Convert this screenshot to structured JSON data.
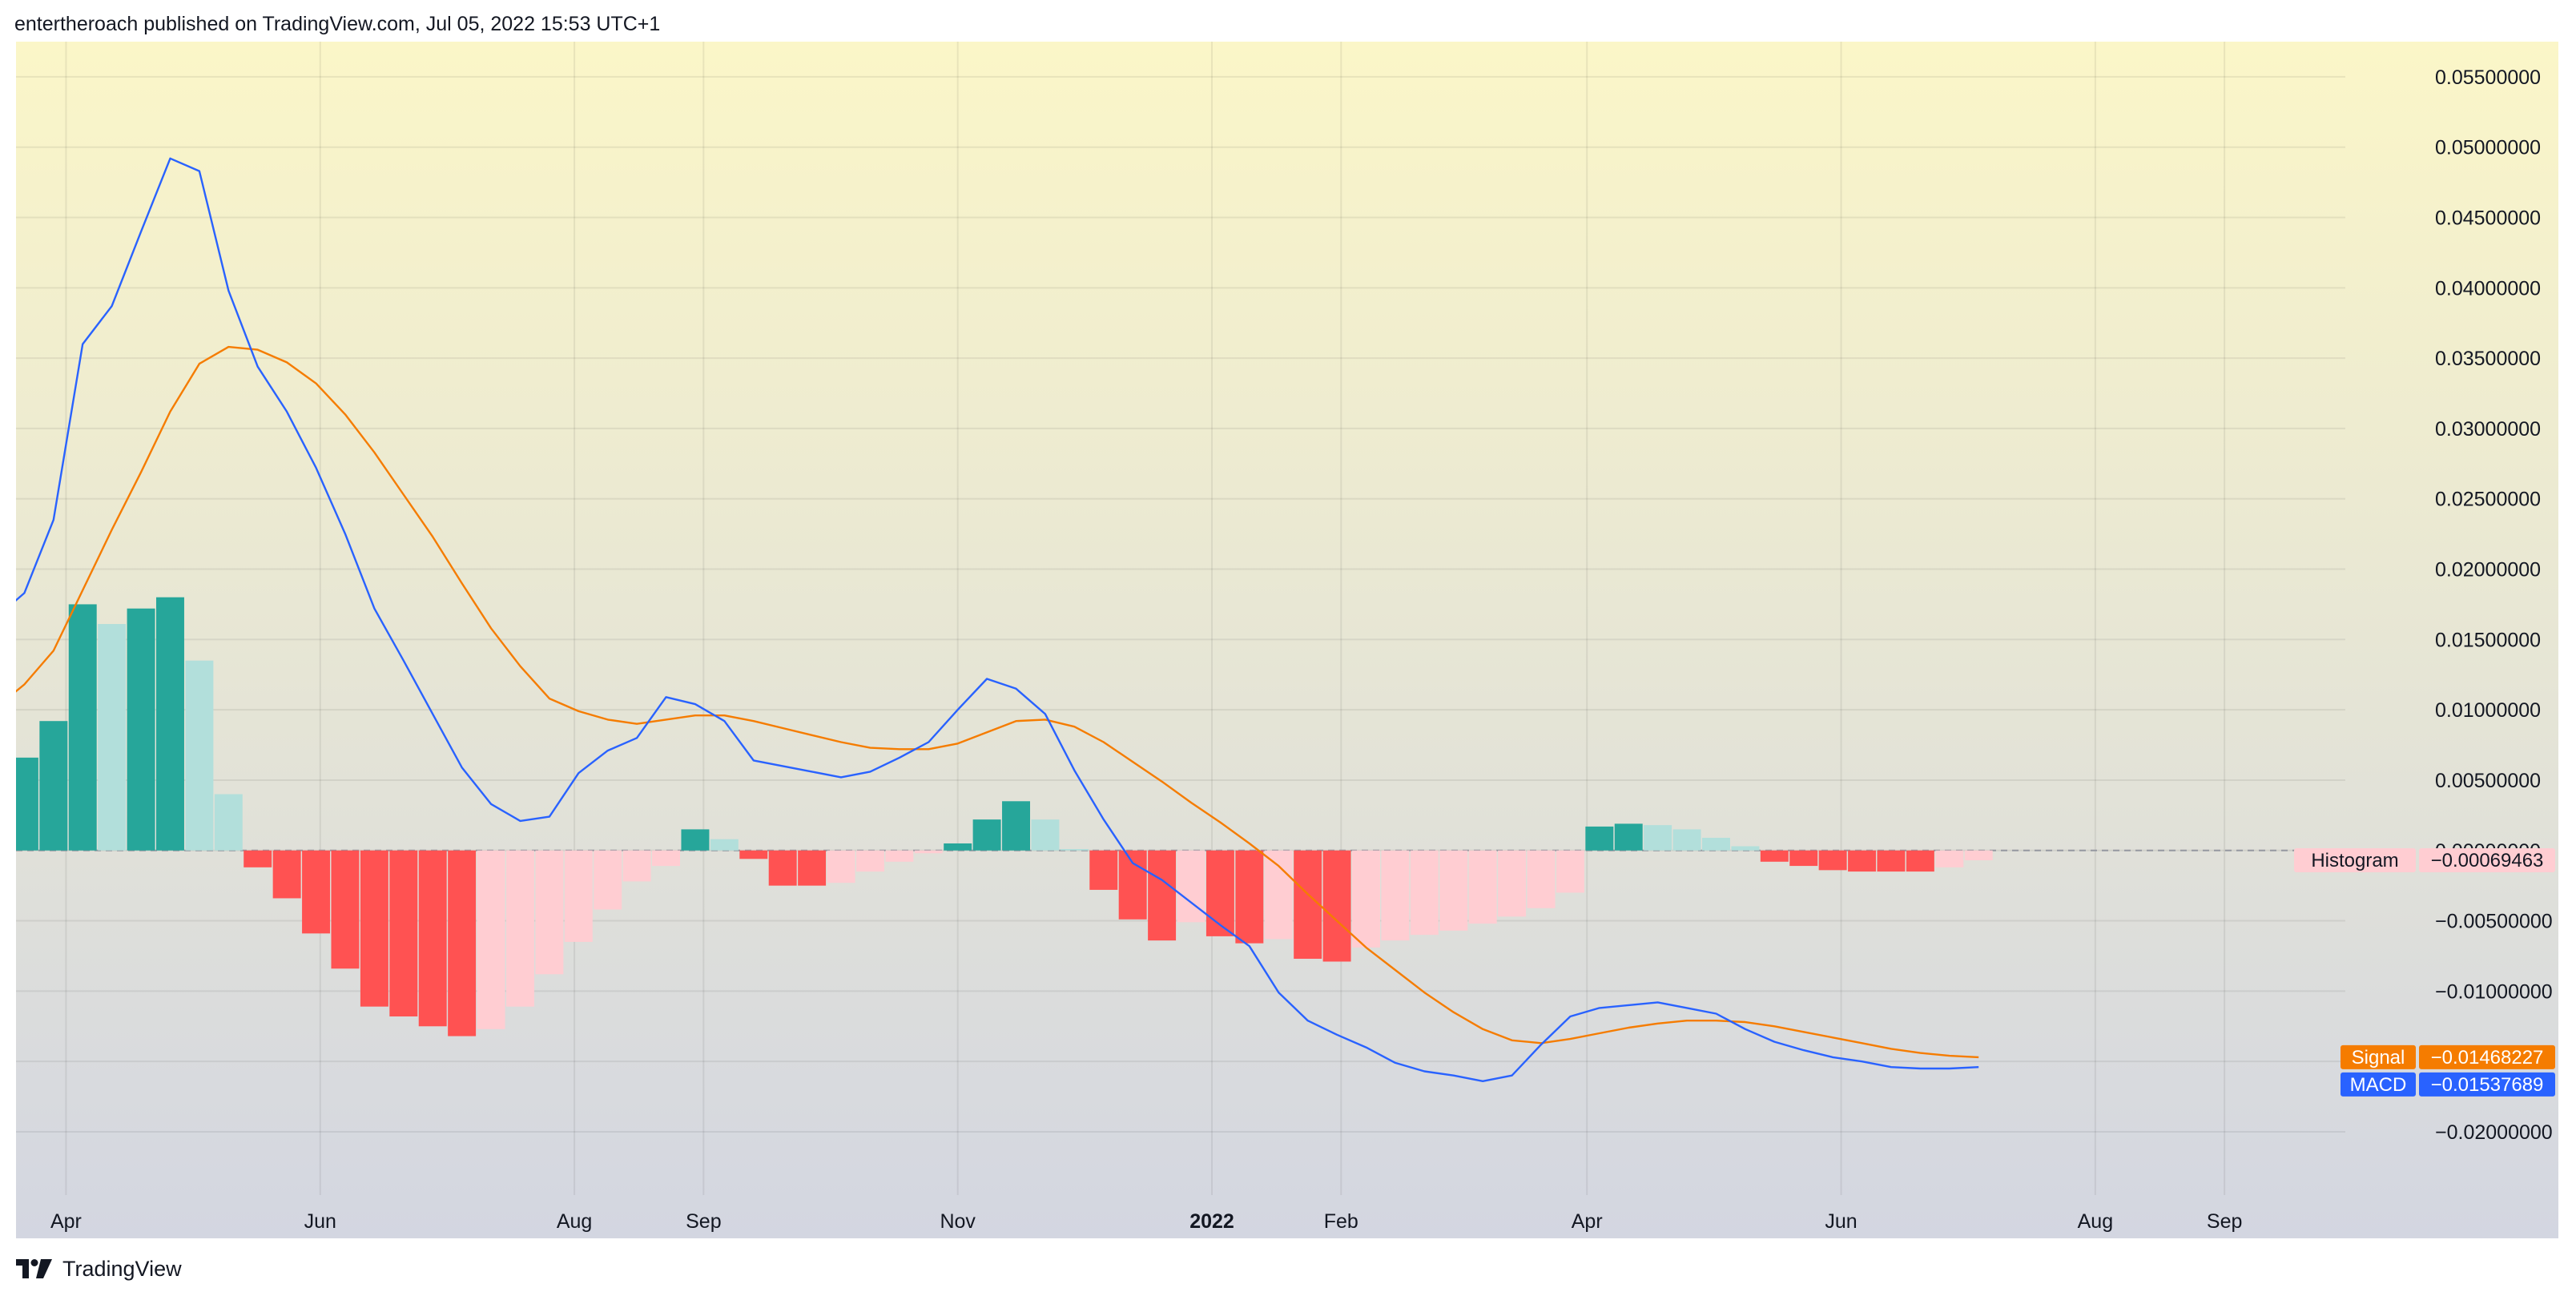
{
  "header": {
    "publisher_line": "entertheroach published on TradingView.com, Jul 05, 2022 15:53 UTC+1"
  },
  "footer": {
    "brand": "TradingView"
  },
  "colors": {
    "background_top": "#fbf6c8",
    "background_bottom": "#d3d6e1",
    "macd_line": "#2962ff",
    "signal_line": "#f57c00",
    "hist_pos_strong": "#26a69a",
    "hist_pos_weak": "#b2dfdb",
    "hist_neg_strong": "#ff5252",
    "hist_neg_weak": "#ffcdd2",
    "zero_line": "#9598a1",
    "axis_text": "#131722"
  },
  "chart_data": {
    "type": "macd-indicator",
    "y_axis": {
      "position": "right",
      "min": -0.0245,
      "max": 0.0575,
      "ticks": [
        "0.05500000",
        "0.05000000",
        "0.04500000",
        "0.04000000",
        "0.03500000",
        "0.03000000",
        "0.02500000",
        "0.02000000",
        "0.01500000",
        "0.01000000",
        "0.00500000",
        "0.00000000",
        "−0.00500000",
        "−0.01000000",
        "−0.01500000",
        "−0.02000000"
      ],
      "tick_values": [
        0.055,
        0.05,
        0.045,
        0.04,
        0.035,
        0.03,
        0.025,
        0.02,
        0.015,
        0.01,
        0.005,
        0,
        -0.005,
        -0.01,
        -0.015,
        -0.02
      ]
    },
    "x_axis": {
      "range": [
        "2021-03-20",
        "2022-09-30"
      ],
      "ticks": [
        {
          "label": "Apr",
          "date": "2021-04-01",
          "bold": false
        },
        {
          "label": "Jun",
          "date": "2021-06-01",
          "bold": false
        },
        {
          "label": "Aug",
          "date": "2021-08-01",
          "bold": false
        },
        {
          "label": "Sep",
          "date": "2021-09-01",
          "bold": false
        },
        {
          "label": "Nov",
          "date": "2021-11-01",
          "bold": false
        },
        {
          "label": "2022",
          "date": "2022-01-01",
          "bold": true
        },
        {
          "label": "Feb",
          "date": "2022-02-01",
          "bold": false
        },
        {
          "label": "Apr",
          "date": "2022-04-01",
          "bold": false
        },
        {
          "label": "Jun",
          "date": "2022-06-01",
          "bold": false
        },
        {
          "label": "Aug",
          "date": "2022-08-01",
          "bold": false
        },
        {
          "label": "Sep",
          "date": "2022-09-01",
          "bold": false
        }
      ]
    },
    "grid": true,
    "zero_line": "dashed",
    "dates": [
      "2021-03-15",
      "2021-03-22",
      "2021-03-29",
      "2021-04-05",
      "2021-04-12",
      "2021-04-19",
      "2021-04-26",
      "2021-05-03",
      "2021-05-10",
      "2021-05-17",
      "2021-05-24",
      "2021-05-31",
      "2021-06-07",
      "2021-06-14",
      "2021-06-21",
      "2021-06-28",
      "2021-07-05",
      "2021-07-12",
      "2021-07-19",
      "2021-07-26",
      "2021-08-02",
      "2021-08-09",
      "2021-08-16",
      "2021-08-23",
      "2021-08-30",
      "2021-09-06",
      "2021-09-13",
      "2021-09-20",
      "2021-09-27",
      "2021-10-04",
      "2021-10-11",
      "2021-10-18",
      "2021-10-25",
      "2021-11-01",
      "2021-11-08",
      "2021-11-15",
      "2021-11-22",
      "2021-11-29",
      "2021-12-06",
      "2021-12-13",
      "2021-12-20",
      "2021-12-27",
      "2022-01-03",
      "2022-01-10",
      "2022-01-17",
      "2022-01-24",
      "2022-01-31",
      "2022-02-07",
      "2022-02-14",
      "2022-02-21",
      "2022-02-28",
      "2022-03-07",
      "2022-03-14",
      "2022-03-21",
      "2022-03-28",
      "2022-04-04",
      "2022-04-11",
      "2022-04-18",
      "2022-04-25",
      "2022-05-02",
      "2022-05-09",
      "2022-05-16",
      "2022-05-23",
      "2022-05-30",
      "2022-06-06",
      "2022-06-13",
      "2022-06-20",
      "2022-06-27",
      "2022-07-04"
    ],
    "series": [
      {
        "name": "Histogram",
        "kind": "histogram",
        "last_value": "−0.00069463",
        "values": [
          0.0066,
          0.0066,
          0.0092,
          0.0175,
          0.0161,
          0.0172,
          0.018,
          0.0135,
          0.004,
          -0.0012,
          -0.0034,
          -0.0059,
          -0.0084,
          -0.0111,
          -0.0118,
          -0.0125,
          -0.0132,
          -0.0127,
          -0.0111,
          -0.0088,
          -0.0065,
          -0.0042,
          -0.0022,
          -0.0011,
          0.0015,
          0.0008,
          -0.0006,
          -0.0025,
          -0.0025,
          -0.0023,
          -0.0015,
          -0.0008,
          -0.0002,
          0.0005,
          0.0022,
          0.0035,
          0.0022,
          0.0001,
          -0.0028,
          -0.0049,
          -0.0064,
          -0.0051,
          -0.0061,
          -0.0066,
          -0.0063,
          -0.0077,
          -0.0079,
          -0.0069,
          -0.0064,
          -0.006,
          -0.0057,
          -0.0052,
          -0.0047,
          -0.0041,
          -0.003,
          0.0017,
          0.0019,
          0.0018,
          0.0015,
          0.0009,
          0.0003,
          -0.0008,
          -0.0011,
          -0.0014,
          -0.0015,
          -0.0015,
          -0.0015,
          -0.0012,
          -0.0007
        ]
      },
      {
        "name": "MACD",
        "kind": "line",
        "last_value": "−0.01537689",
        "values": [
          0.0165,
          0.0183,
          0.0235,
          0.036,
          0.0387,
          0.044,
          0.0492,
          0.0483,
          0.0398,
          0.0344,
          0.0312,
          0.0272,
          0.0225,
          0.0172,
          0.0135,
          0.0097,
          0.0059,
          0.0033,
          0.0021,
          0.0024,
          0.0055,
          0.0071,
          0.008,
          0.0109,
          0.0104,
          0.0092,
          0.0064,
          0.006,
          0.0056,
          0.0052,
          0.0056,
          0.0066,
          0.0077,
          0.01,
          0.0122,
          0.0115,
          0.0097,
          0.0057,
          0.0022,
          -0.0009,
          -0.0021,
          -0.0037,
          -0.0053,
          -0.0068,
          -0.0101,
          -0.0121,
          -0.0131,
          -0.014,
          -0.0151,
          -0.0157,
          -0.016,
          -0.0164,
          -0.016,
          -0.0138,
          -0.0118,
          -0.0112,
          -0.011,
          -0.0108,
          -0.0112,
          -0.0116,
          -0.0127,
          -0.0136,
          -0.0142,
          -0.0147,
          -0.015,
          -0.0154,
          -0.0155,
          -0.0155,
          -0.0154
        ]
      },
      {
        "name": "Signal",
        "kind": "line",
        "last_value": "−0.01468227",
        "values": [
          0.0101,
          0.0118,
          0.0142,
          0.0185,
          0.0228,
          0.0269,
          0.0312,
          0.0346,
          0.0358,
          0.0356,
          0.0347,
          0.0332,
          0.031,
          0.0283,
          0.0253,
          0.0223,
          0.019,
          0.0158,
          0.0131,
          0.0108,
          0.0099,
          0.0093,
          0.009,
          0.0093,
          0.0096,
          0.0096,
          0.0092,
          0.0087,
          0.0082,
          0.0077,
          0.0073,
          0.0072,
          0.0072,
          0.0076,
          0.0084,
          0.0092,
          0.0093,
          0.0088,
          0.0077,
          0.0063,
          0.0049,
          0.0034,
          0.002,
          0.0005,
          -0.0011,
          -0.0031,
          -0.005,
          -0.0069,
          -0.0085,
          -0.0101,
          -0.0115,
          -0.0127,
          -0.0135,
          -0.0137,
          -0.0134,
          -0.013,
          -0.0126,
          -0.0123,
          -0.0121,
          -0.0121,
          -0.0122,
          -0.0125,
          -0.0129,
          -0.0133,
          -0.0137,
          -0.0141,
          -0.0144,
          -0.0146,
          -0.0147
        ]
      }
    ],
    "labels": [
      {
        "name": "Histogram",
        "text": "Histogram",
        "value": "−0.00069463",
        "y_value": -0.0007
      },
      {
        "name": "Signal",
        "text": "Signal",
        "value": "−0.01468227",
        "y_value": -0.0147
      },
      {
        "name": "MACD",
        "text": "MACD",
        "value": "−0.01537689",
        "y_value": -0.0154
      }
    ]
  }
}
